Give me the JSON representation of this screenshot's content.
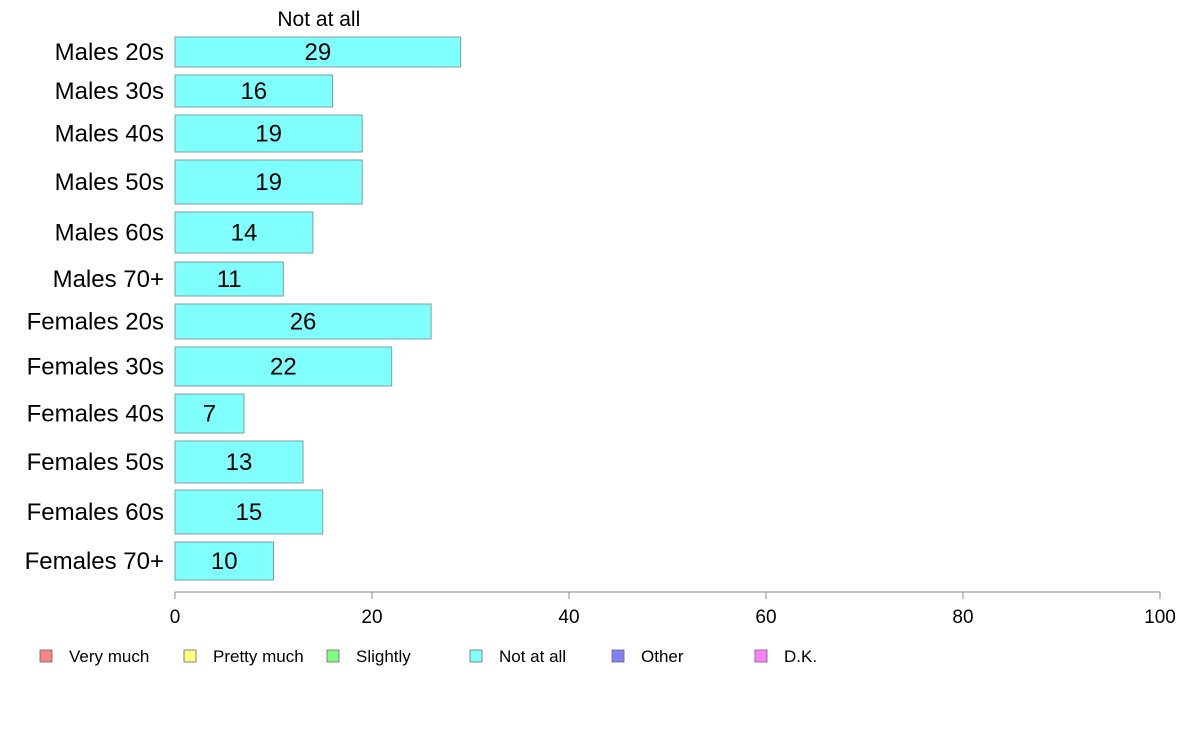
{
  "chart_data": {
    "type": "bar",
    "orientation": "horizontal",
    "stacked": true,
    "header_label": "Not at all",
    "categories": [
      "Males 20s",
      "Males 30s",
      "Males 40s",
      "Males 50s",
      "Males 60s",
      "Males 70+",
      "Females 20s",
      "Females 30s",
      "Females 40s",
      "Females 50s",
      "Females 60s",
      "Females 70+"
    ],
    "series": [
      {
        "name": "Not at all",
        "color": "#80ffff",
        "values": [
          29,
          16,
          19,
          19,
          14,
          11,
          26,
          22,
          7,
          13,
          15,
          10
        ]
      }
    ],
    "value_labels": [
      "29",
      "16",
      "19",
      "19",
      "14",
      "11",
      "26",
      "22",
      "7",
      "13",
      "15",
      "10"
    ],
    "xlim": [
      0,
      100
    ],
    "xticks": [
      0,
      20,
      40,
      60,
      80,
      100
    ],
    "grid": false,
    "legend_position": "bottom",
    "legend": [
      {
        "label": "Very much",
        "color": "#ff8080"
      },
      {
        "label": "Pretty much",
        "color": "#ffff80"
      },
      {
        "label": "Slightly",
        "color": "#80ff80"
      },
      {
        "label": "Not at all",
        "color": "#80ffff"
      },
      {
        "label": "Other",
        "color": "#8080ff"
      },
      {
        "label": "D.K.",
        "color": "#ff80ff"
      }
    ]
  }
}
